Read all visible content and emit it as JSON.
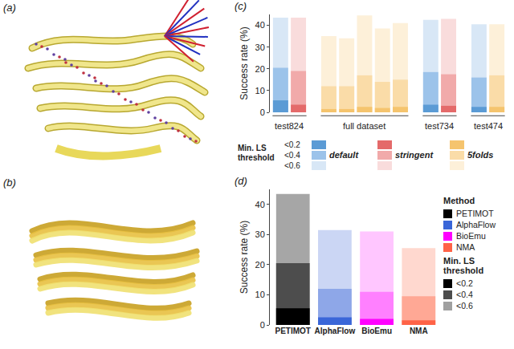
{
  "panels": {
    "a": "(a)",
    "b": "(b)"
  },
  "chart_data": [
    {
      "type": "bar",
      "panel": "(c)",
      "ylabel": "Success rate (%)",
      "ylim": [
        0,
        45
      ],
      "yticks": [
        0,
        10,
        20,
        30,
        40
      ],
      "stacked": false,
      "legend_title": "Min. LS threshold",
      "thresholds": [
        "<0.2",
        "<0.4",
        "<0.6"
      ],
      "models": [
        {
          "name": "default",
          "colors": [
            "#5b9bd5",
            "#9cc3ea",
            "#d8e7f6"
          ]
        },
        {
          "name": "stringent",
          "colors": [
            "#e46a6a",
            "#f1aaaa",
            "#f9dcdc"
          ]
        },
        {
          "name": "5folds",
          "colors": [
            "#f5c46e",
            "#fadca8",
            "#fdf0d9"
          ]
        }
      ],
      "groups": [
        {
          "label": "test824",
          "bars": [
            {
              "model": "default",
              "values": [
                5.5,
                20.5,
                43.5
              ]
            },
            {
              "model": "stringent",
              "values": [
                3.5,
                19,
                43.5
              ]
            }
          ]
        },
        {
          "label": "full dataset",
          "bars": [
            {
              "model": "5folds",
              "values": [
                1.5,
                12,
                35
              ]
            },
            {
              "model": "5folds",
              "values": [
                1.5,
                12,
                34
              ]
            },
            {
              "model": "5folds",
              "values": [
                2.5,
                17,
                44.5
              ]
            },
            {
              "model": "5folds",
              "values": [
                2,
                14,
                38.5
              ]
            },
            {
              "model": "5folds",
              "values": [
                2.5,
                15,
                41
              ]
            }
          ]
        },
        {
          "label": "test734",
          "bars": [
            {
              "model": "default",
              "values": [
                3.5,
                18.5,
                42.5
              ]
            },
            {
              "model": "stringent",
              "values": [
                3,
                17.5,
                43
              ]
            }
          ]
        },
        {
          "label": "test474",
          "bars": [
            {
              "model": "default",
              "values": [
                2.5,
                16,
                40.5
              ]
            },
            {
              "model": "5folds",
              "values": [
                2.5,
                17,
                40.5
              ]
            }
          ]
        }
      ]
    },
    {
      "type": "bar",
      "panel": "(d)",
      "ylabel": "Success rate (%)",
      "ylim": [
        0,
        45
      ],
      "yticks": [
        0,
        10,
        20,
        30,
        40
      ],
      "stacked": false,
      "categories": [
        "PETIMOT",
        "AlphaFlow",
        "BioEmu",
        "NMA"
      ],
      "legend_title": "Method",
      "method_colors": [
        "#000000",
        "#3a66d8",
        "#ff00ff",
        "#ff6347"
      ],
      "threshold_legend_title": "Min. LS threshold",
      "threshold_colors": [
        "#000000",
        "#4d4d4d",
        "#a0a0a0"
      ],
      "series": [
        {
          "name": "<0.2",
          "values": [
            5.5,
            2.5,
            2,
            1.5
          ],
          "colors": [
            "#000000",
            "#3a66d8",
            "#ff00ff",
            "#ff6347"
          ]
        },
        {
          "name": "<0.4",
          "values": [
            20.5,
            12,
            11,
            9.5
          ],
          "colors": [
            "#4d4d4d",
            "#8ea7e8",
            "#ff80ff",
            "#ffa895"
          ]
        },
        {
          "name": "<0.6",
          "values": [
            43.5,
            31.5,
            31,
            25.5
          ],
          "colors": [
            "#a6a6a6",
            "#cbd6f4",
            "#ffc6ff",
            "#ffd8cf"
          ]
        }
      ]
    }
  ]
}
